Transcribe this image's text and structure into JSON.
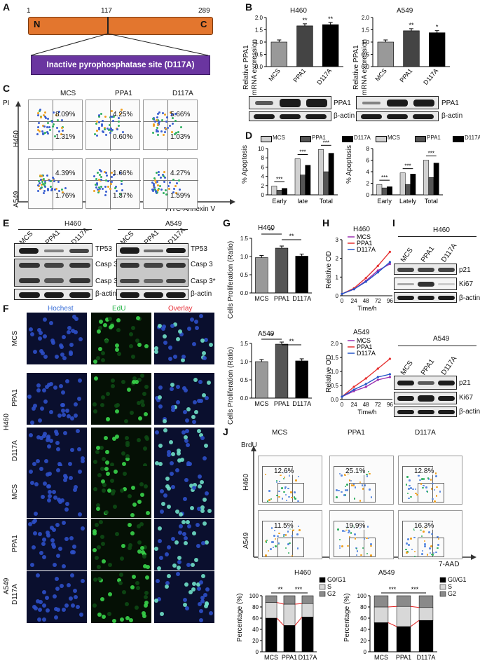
{
  "panels": {
    "A": "A",
    "B": "B",
    "C": "C",
    "D": "D",
    "E": "E",
    "F": "F",
    "G": "G",
    "H": "H",
    "I": "I",
    "J": "J"
  },
  "A": {
    "pos_start": "1",
    "pos_mid": "117",
    "pos_end": "289",
    "n": "N",
    "c": "C",
    "site": "Inactive pyrophosphatase site (D117A)"
  },
  "B": {
    "ylabel1": "Relative PPA1",
    "ylabel2": "mRNA expression",
    "h460": {
      "title": "H460",
      "values": [
        1.0,
        1.66,
        1.71
      ],
      "sig": [
        "",
        "**",
        "**"
      ],
      "ticks": [
        "0.0",
        "0.5",
        "1.0",
        "1.5",
        "2.0"
      ]
    },
    "a549": {
      "title": "A549",
      "values": [
        1.0,
        1.46,
        1.38
      ],
      "sig": [
        "",
        "**",
        "*"
      ],
      "ticks": [
        "0.0",
        "0.5",
        "1.0",
        "1.5",
        "2.0"
      ]
    },
    "cats": [
      "MCS",
      "PPA1",
      "D117A"
    ],
    "blot": {
      "ppa1": "PPA1",
      "actin": "β-actin"
    }
  },
  "C": {
    "cols": [
      "MCS",
      "PPA1",
      "D117A"
    ],
    "rows": [
      "H460",
      "A549"
    ],
    "yaxis": "PI",
    "xaxis": "FITC-Annexin V",
    "h460_ur": [
      "8.09%",
      "4.25%",
      "5.66%"
    ],
    "h460_lr": [
      "1.31%",
      "0.60%",
      "1.03%"
    ],
    "a549_ur": [
      "4.39%",
      "1.66%",
      "4.27%"
    ],
    "a549_lr": [
      "1.76%",
      "1.37%",
      "1.59%"
    ]
  },
  "D": {
    "ylabel": "% Apoptosis",
    "legend": [
      "MCS",
      "PPA1",
      "D117A"
    ],
    "colors": [
      "#d0d0d0",
      "#555555",
      "#000000"
    ],
    "left": {
      "cats": [
        "Early",
        "late",
        "Total"
      ],
      "ticks": [
        "0",
        "2",
        "4",
        "6",
        "8",
        "10"
      ],
      "series": [
        [
          1.9,
          7.8,
          9.8
        ],
        [
          1.0,
          4.3,
          5.0
        ],
        [
          1.4,
          6.4,
          9.0
        ]
      ]
    },
    "right": {
      "cats": [
        "Early",
        "Lately",
        "Total"
      ],
      "ticks": [
        "0",
        "2",
        "4",
        "6",
        "8"
      ],
      "series": [
        [
          1.8,
          3.8,
          6.0
        ],
        [
          1.2,
          1.8,
          3.0
        ],
        [
          1.4,
          3.6,
          5.5
        ]
      ]
    }
  },
  "E": {
    "h460": "H460",
    "a549": "A549",
    "cats": [
      "MCS",
      "PPA1",
      "D117A"
    ],
    "rows": [
      "TP53",
      "Casp 3",
      "Casp 3*",
      "β-actin"
    ]
  },
  "F": {
    "cols": [
      "Hochest",
      "EdU",
      "Overlay"
    ],
    "col_colors": [
      "#3a6fd8",
      "#27b54a",
      "#e8343c"
    ],
    "h460": "H460",
    "a549": "A549",
    "rows": [
      "MCS",
      "PPA1",
      "D117A"
    ]
  },
  "G": {
    "ylabel": "Cells Proliferation (Ratio)",
    "cats": [
      "MCS",
      "PPA1",
      "D117A"
    ],
    "h460": {
      "title": "H460",
      "values": [
        0.97,
        1.23,
        1.01
      ],
      "ticks": [
        "0.0",
        "0.5",
        "1.0",
        "1.5"
      ]
    },
    "a549": {
      "title": "A549",
      "values": [
        1.0,
        1.48,
        1.02
      ],
      "ticks": [
        "0.0",
        "0.5",
        "1.0",
        "1.5"
      ]
    },
    "sig": [
      "**",
      "**"
    ]
  },
  "H": {
    "ylabel": "Relative OD",
    "xlabel": "Time/h",
    "x": [
      0,
      24,
      48,
      72,
      96
    ],
    "legend": [
      "MCS",
      "PPA1",
      "D117A"
    ],
    "colors": [
      "#9b2fb0",
      "#e53030",
      "#2454c8"
    ],
    "h460": {
      "title": "H460",
      "series": [
        [
          0.1,
          0.35,
          0.8,
          1.35,
          1.7
        ],
        [
          0.1,
          0.4,
          0.95,
          1.6,
          2.35
        ],
        [
          0.1,
          0.35,
          0.75,
          1.25,
          1.8
        ]
      ],
      "ticks": [
        "0",
        "1",
        "2",
        "3"
      ]
    },
    "a549": {
      "title": "A549",
      "series": [
        [
          0.1,
          0.3,
          0.45,
          0.7,
          0.8
        ],
        [
          0.1,
          0.45,
          0.75,
          1.1,
          1.45
        ],
        [
          0.1,
          0.35,
          0.55,
          0.8,
          0.9
        ]
      ],
      "ticks": [
        "0.0",
        "0.5",
        "1.0",
        "1.5",
        "2.0"
      ]
    }
  },
  "I": {
    "h460": "H460",
    "a549": "A549",
    "cats": [
      "MCS",
      "PPA1",
      "D117A"
    ],
    "rows": [
      "p21",
      "Ki67",
      "β-actin"
    ]
  },
  "J": {
    "cols": [
      "MCS",
      "PPA1",
      "D117A"
    ],
    "rows": [
      "H460",
      "A549"
    ],
    "yaxis": "BrdU",
    "xaxis": "7-AAD",
    "h460_pct": [
      "12.6%",
      "25.1%",
      "12.8%"
    ],
    "a549_pct": [
      "11.5%",
      "19.9%",
      "16.3%"
    ],
    "bar_ylabel": "Percentage (%)",
    "legend": [
      "G0/G1",
      "S",
      "G2"
    ],
    "h460": {
      "title": "H460",
      "g0": [
        60,
        47,
        62
      ],
      "s": [
        28,
        38,
        24
      ],
      "g2": [
        12,
        15,
        14
      ],
      "sig": [
        "**",
        "***"
      ]
    },
    "a549": {
      "title": "A549",
      "g0": [
        52,
        45,
        56
      ],
      "s": [
        28,
        36,
        23
      ],
      "g2": [
        20,
        19,
        21
      ],
      "sig": [
        "***",
        "***"
      ]
    },
    "ticks": [
      "0",
      "20",
      "40",
      "60",
      "80",
      "100"
    ]
  }
}
